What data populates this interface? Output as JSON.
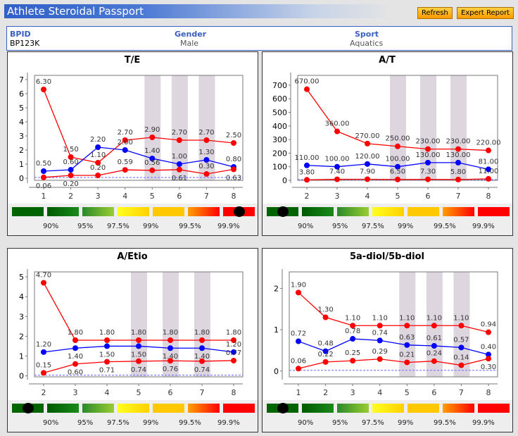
{
  "header": {
    "title": "Athlete Steroidal Passport",
    "refresh_label": "Refresh",
    "expert_report_label": "Expert Report"
  },
  "athlete": {
    "bpid_label": "BPID",
    "bpid": "BP123K",
    "gender_label": "Gender",
    "gender": "Male",
    "sport_label": "Sport",
    "sport": "Aquatics"
  },
  "gauge_labels": [
    "90%",
    "95%",
    "97.5%",
    "99%",
    "99.5%",
    "99.9%"
  ],
  "colors": {
    "upper_lower_limits": "#ff0000",
    "athlete_values": "#0000ff",
    "shaded_band": "#ddd6df"
  },
  "chart_data": [
    {
      "type": "line",
      "title": "T/E",
      "x": [
        1,
        2,
        3,
        4,
        5,
        6,
        7,
        8
      ],
      "yticks": [
        0,
        1,
        2,
        3,
        4,
        5,
        6,
        7
      ],
      "ylim": [
        -0.15,
        7.3
      ],
      "shaded_x": [
        5,
        6,
        7
      ],
      "series": [
        {
          "color": "red",
          "values": [
            6.3,
            1.5,
            1.1,
            2.7,
            2.9,
            2.7,
            2.7,
            2.5
          ]
        },
        {
          "color": "blue",
          "values": [
            0.5,
            0.6,
            2.2,
            2.0,
            1.4,
            1.0,
            1.3,
            0.8
          ]
        },
        {
          "color": "red",
          "values": [
            0.06,
            0.2,
            0.2,
            0.59,
            0.56,
            0.61,
            0.3,
            0.63
          ]
        }
      ],
      "gauge_marker_segment": 7,
      "gauge_marker_position": "99.9%+"
    },
    {
      "type": "line",
      "title": "A/T",
      "x": [
        2,
        3,
        4,
        5,
        6,
        7,
        8
      ],
      "yticks": [
        0,
        100,
        200,
        300,
        400,
        500,
        600,
        700
      ],
      "ylim": [
        0,
        772
      ],
      "shaded_x": [
        5,
        6,
        7
      ],
      "series": [
        {
          "color": "red",
          "values": [
            670,
            360,
            270,
            250,
            230,
            230,
            220
          ]
        },
        {
          "color": "blue",
          "values": [
            110,
            100,
            120,
            100,
            130,
            130,
            81
          ]
        },
        {
          "color": "red",
          "values": [
            3.8,
            7.4,
            7.9,
            6.5,
            7.3,
            5.8,
            11.0
          ]
        }
      ],
      "gauge_marker_segment": 1,
      "gauge_marker_position": "below 90%"
    },
    {
      "type": "line",
      "title": "A/Etio",
      "x": [
        2,
        3,
        4,
        5,
        6,
        7,
        8
      ],
      "yticks": [
        0,
        1,
        2,
        3,
        4,
        5
      ],
      "ylim": [
        -0.05,
        5.25
      ],
      "shaded_x": [
        5,
        6,
        7
      ],
      "series": [
        {
          "color": "red",
          "values": [
            4.7,
            1.8,
            1.8,
            1.8,
            1.8,
            1.8,
            1.8
          ]
        },
        {
          "color": "blue",
          "values": [
            1.2,
            1.4,
            1.5,
            1.5,
            1.4,
            1.4,
            1.2
          ]
        },
        {
          "color": "red",
          "values": [
            0.15,
            0.6,
            0.71,
            0.74,
            0.76,
            0.74,
            0.77
          ]
        }
      ],
      "gauge_marker_segment": 1,
      "gauge_marker_position": "below 90%"
    },
    {
      "type": "line",
      "title": "5a-diol/5b-diol",
      "x": [
        1,
        2,
        3,
        4,
        5,
        6,
        7,
        8
      ],
      "yticks": [
        0,
        1,
        2
      ],
      "ylim": [
        -0.14,
        2.4
      ],
      "shaded_x": [
        5,
        6,
        7
      ],
      "series": [
        {
          "color": "red",
          "values": [
            1.9,
            1.3,
            1.1,
            1.1,
            1.1,
            1.1,
            1.1,
            0.94
          ]
        },
        {
          "color": "blue",
          "values": [
            0.72,
            0.48,
            0.78,
            0.74,
            0.63,
            0.61,
            0.57,
            0.4
          ]
        },
        {
          "color": "red",
          "values": [
            0.06,
            0.22,
            0.25,
            0.29,
            0.21,
            0.24,
            0.14,
            0.3
          ]
        }
      ],
      "gauge_marker_segment": 1,
      "gauge_marker_position": "below 90%"
    }
  ]
}
